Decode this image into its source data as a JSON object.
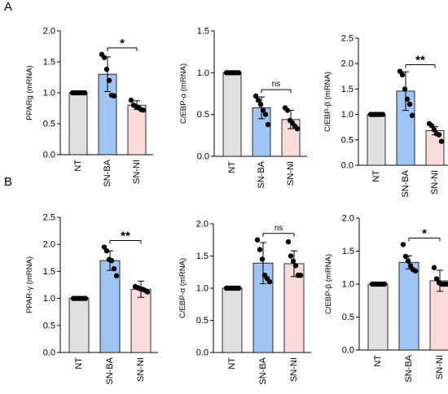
{
  "panel_labels": [
    "A",
    "B"
  ],
  "colors": {
    "NT": "#e0e0e0",
    "SN-BA": "#9ec5f4",
    "SN-NI": "#fbdada",
    "stroke": "#000000",
    "dot": "#000000"
  },
  "chart_data": [
    {
      "type": "bar",
      "panel": "A",
      "ylabel": "PPARg (mRNA)",
      "categories": [
        "NT",
        "SN-BA",
        "SN-NI"
      ],
      "values": [
        1.0,
        1.3,
        0.8
      ],
      "error": [
        0.0,
        0.28,
        0.07
      ],
      "points": [
        [
          1,
          1,
          1,
          1,
          1,
          1
        ],
        [
          1.62,
          1.57,
          1.38,
          1.2,
          0.96,
          0.95
        ],
        [
          0.88,
          0.8,
          0.78,
          0.76,
          0.73,
          0.72
        ]
      ],
      "ylim": [
        0,
        2.0
      ],
      "yticks": [
        "0.0",
        "0.5",
        "1.0",
        "1.5",
        "2.0"
      ],
      "significance": {
        "pair": [
          1,
          2
        ],
        "label": "*"
      }
    },
    {
      "type": "bar",
      "panel": "A",
      "ylabel": "C/EBP-α (mRNA)",
      "categories": [
        "NT",
        "SN-BA",
        "SN-NI"
      ],
      "values": [
        1.0,
        0.58,
        0.44
      ],
      "error": [
        0.0,
        0.13,
        0.11
      ],
      "points": [
        [
          1,
          1,
          1,
          1,
          1,
          1
        ],
        [
          0.72,
          0.67,
          0.62,
          0.55,
          0.5,
          0.38
        ],
        [
          0.58,
          0.55,
          0.43,
          0.4,
          0.36,
          0.33
        ]
      ],
      "ylim": [
        0,
        1.5
      ],
      "yticks": [
        "0.0",
        "0.5",
        "1.0",
        "1.5"
      ],
      "significance": {
        "pair": [
          1,
          2
        ],
        "label": "ns"
      }
    },
    {
      "type": "bar",
      "panel": "A",
      "ylabel": "C/EBP-β (mRNA)",
      "categories": [
        "NT",
        "SN-BA",
        "SN-NI"
      ],
      "values": [
        1.0,
        1.46,
        0.68
      ],
      "error": [
        0.0,
        0.38,
        0.08
      ],
      "points": [
        [
          1,
          1,
          1,
          1,
          1,
          1
        ],
        [
          1.85,
          1.78,
          1.5,
          1.3,
          1.2,
          0.98
        ],
        [
          0.82,
          0.78,
          0.7,
          0.62,
          0.6,
          0.47
        ]
      ],
      "ylim": [
        0,
        2.5
      ],
      "yticks": [
        "0.0",
        "0.5",
        "1.0",
        "1.5",
        "2.0",
        "2.5"
      ],
      "significance": {
        "pair": [
          1,
          2
        ],
        "label": "**"
      }
    },
    {
      "type": "bar",
      "panel": "B",
      "ylabel": "PPAR-γ (mRNA)",
      "categories": [
        "NT",
        "SN-BA",
        "SN-NI"
      ],
      "values": [
        1.0,
        1.7,
        1.17
      ],
      "error": [
        0.0,
        0.18,
        0.15
      ],
      "points": [
        [
          1,
          1,
          1,
          1,
          1,
          1
        ],
        [
          1.95,
          1.88,
          1.72,
          1.7,
          1.55,
          1.42
        ],
        [
          1.22,
          1.2,
          1.18,
          1.17,
          1.15,
          1.12
        ]
      ],
      "ylim": [
        0,
        2.5
      ],
      "yticks": [
        "0.0",
        "0.5",
        "1.0",
        "1.5",
        "2.0",
        "2.5"
      ],
      "significance": {
        "pair": [
          1,
          2
        ],
        "label": "**"
      }
    },
    {
      "type": "bar",
      "panel": "B",
      "ylabel": "C/EBP-α (mRNA)",
      "categories": [
        "NT",
        "SN-BA",
        "SN-NI"
      ],
      "values": [
        1.0,
        1.39,
        1.38
      ],
      "error": [
        0.0,
        0.32,
        0.2
      ],
      "points": [
        [
          1,
          1,
          1,
          1,
          1,
          1
        ],
        [
          1.75,
          1.6,
          1.45,
          1.2,
          1.15,
          1.1
        ],
        [
          1.72,
          1.5,
          1.42,
          1.35,
          1.2,
          1.2
        ]
      ],
      "ylim": [
        0,
        2.0
      ],
      "yticks": [
        "0.0",
        "0.5",
        "1.0",
        "1.5",
        "2.0"
      ],
      "significance": {
        "pair": [
          1,
          2
        ],
        "label": "ns"
      }
    },
    {
      "type": "bar",
      "panel": "B",
      "ylabel": "C/EBP-β (mRNA)",
      "categories": [
        "NT",
        "SN-BA",
        "SN-NI"
      ],
      "values": [
        1.0,
        1.33,
        1.05
      ],
      "error": [
        0.0,
        0.1,
        0.16
      ],
      "points": [
        [
          1,
          1,
          1,
          1,
          1,
          1
        ],
        [
          1.6,
          1.42,
          1.35,
          1.28,
          1.22,
          1.2
        ],
        [
          1.25,
          1.08,
          1.02,
          1.0,
          1.0,
          1.0
        ]
      ],
      "ylim": [
        0,
        2.0
      ],
      "yticks": [
        "0.0",
        "0.5",
        "1.0",
        "1.5",
        "2.0"
      ],
      "significance": {
        "pair": [
          1,
          2
        ],
        "label": "*"
      }
    }
  ]
}
